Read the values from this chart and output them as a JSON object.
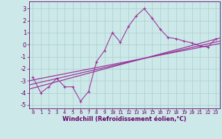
{
  "xlabel": "Windchill (Refroidissement éolien,°C)",
  "xlim": [
    -0.5,
    23.5
  ],
  "ylim": [
    -5.3,
    3.6
  ],
  "xticks": [
    0,
    1,
    2,
    3,
    4,
    5,
    6,
    7,
    8,
    9,
    10,
    11,
    12,
    13,
    14,
    15,
    16,
    17,
    18,
    19,
    20,
    21,
    22,
    23
  ],
  "yticks": [
    -5,
    -4,
    -3,
    -2,
    -1,
    0,
    1,
    2,
    3
  ],
  "bg_color": "#cce8e8",
  "line_color": "#993399",
  "data_x": [
    0,
    1,
    2,
    3,
    4,
    5,
    6,
    7,
    8,
    9,
    10,
    11,
    12,
    13,
    14,
    15,
    16,
    17,
    18,
    19,
    20,
    21,
    22,
    23
  ],
  "data_y": [
    -2.7,
    -4.0,
    -3.5,
    -2.8,
    -3.5,
    -3.5,
    -4.7,
    -3.9,
    -1.4,
    -0.5,
    1.0,
    0.2,
    1.5,
    2.4,
    3.0,
    2.2,
    1.3,
    0.6,
    0.5,
    0.3,
    0.15,
    -0.1,
    -0.2,
    0.5
  ],
  "reg_lines": [
    [
      [
        -0.5,
        23.5
      ],
      [
        -3.7,
        0.55
      ]
    ],
    [
      [
        -0.5,
        23.5
      ],
      [
        -3.35,
        0.3
      ]
    ],
    [
      [
        -0.5,
        23.5
      ],
      [
        -3.0,
        0.1
      ]
    ]
  ],
  "grid_color": "#aacece",
  "tick_fontsize": 6,
  "xlabel_fontsize": 6
}
